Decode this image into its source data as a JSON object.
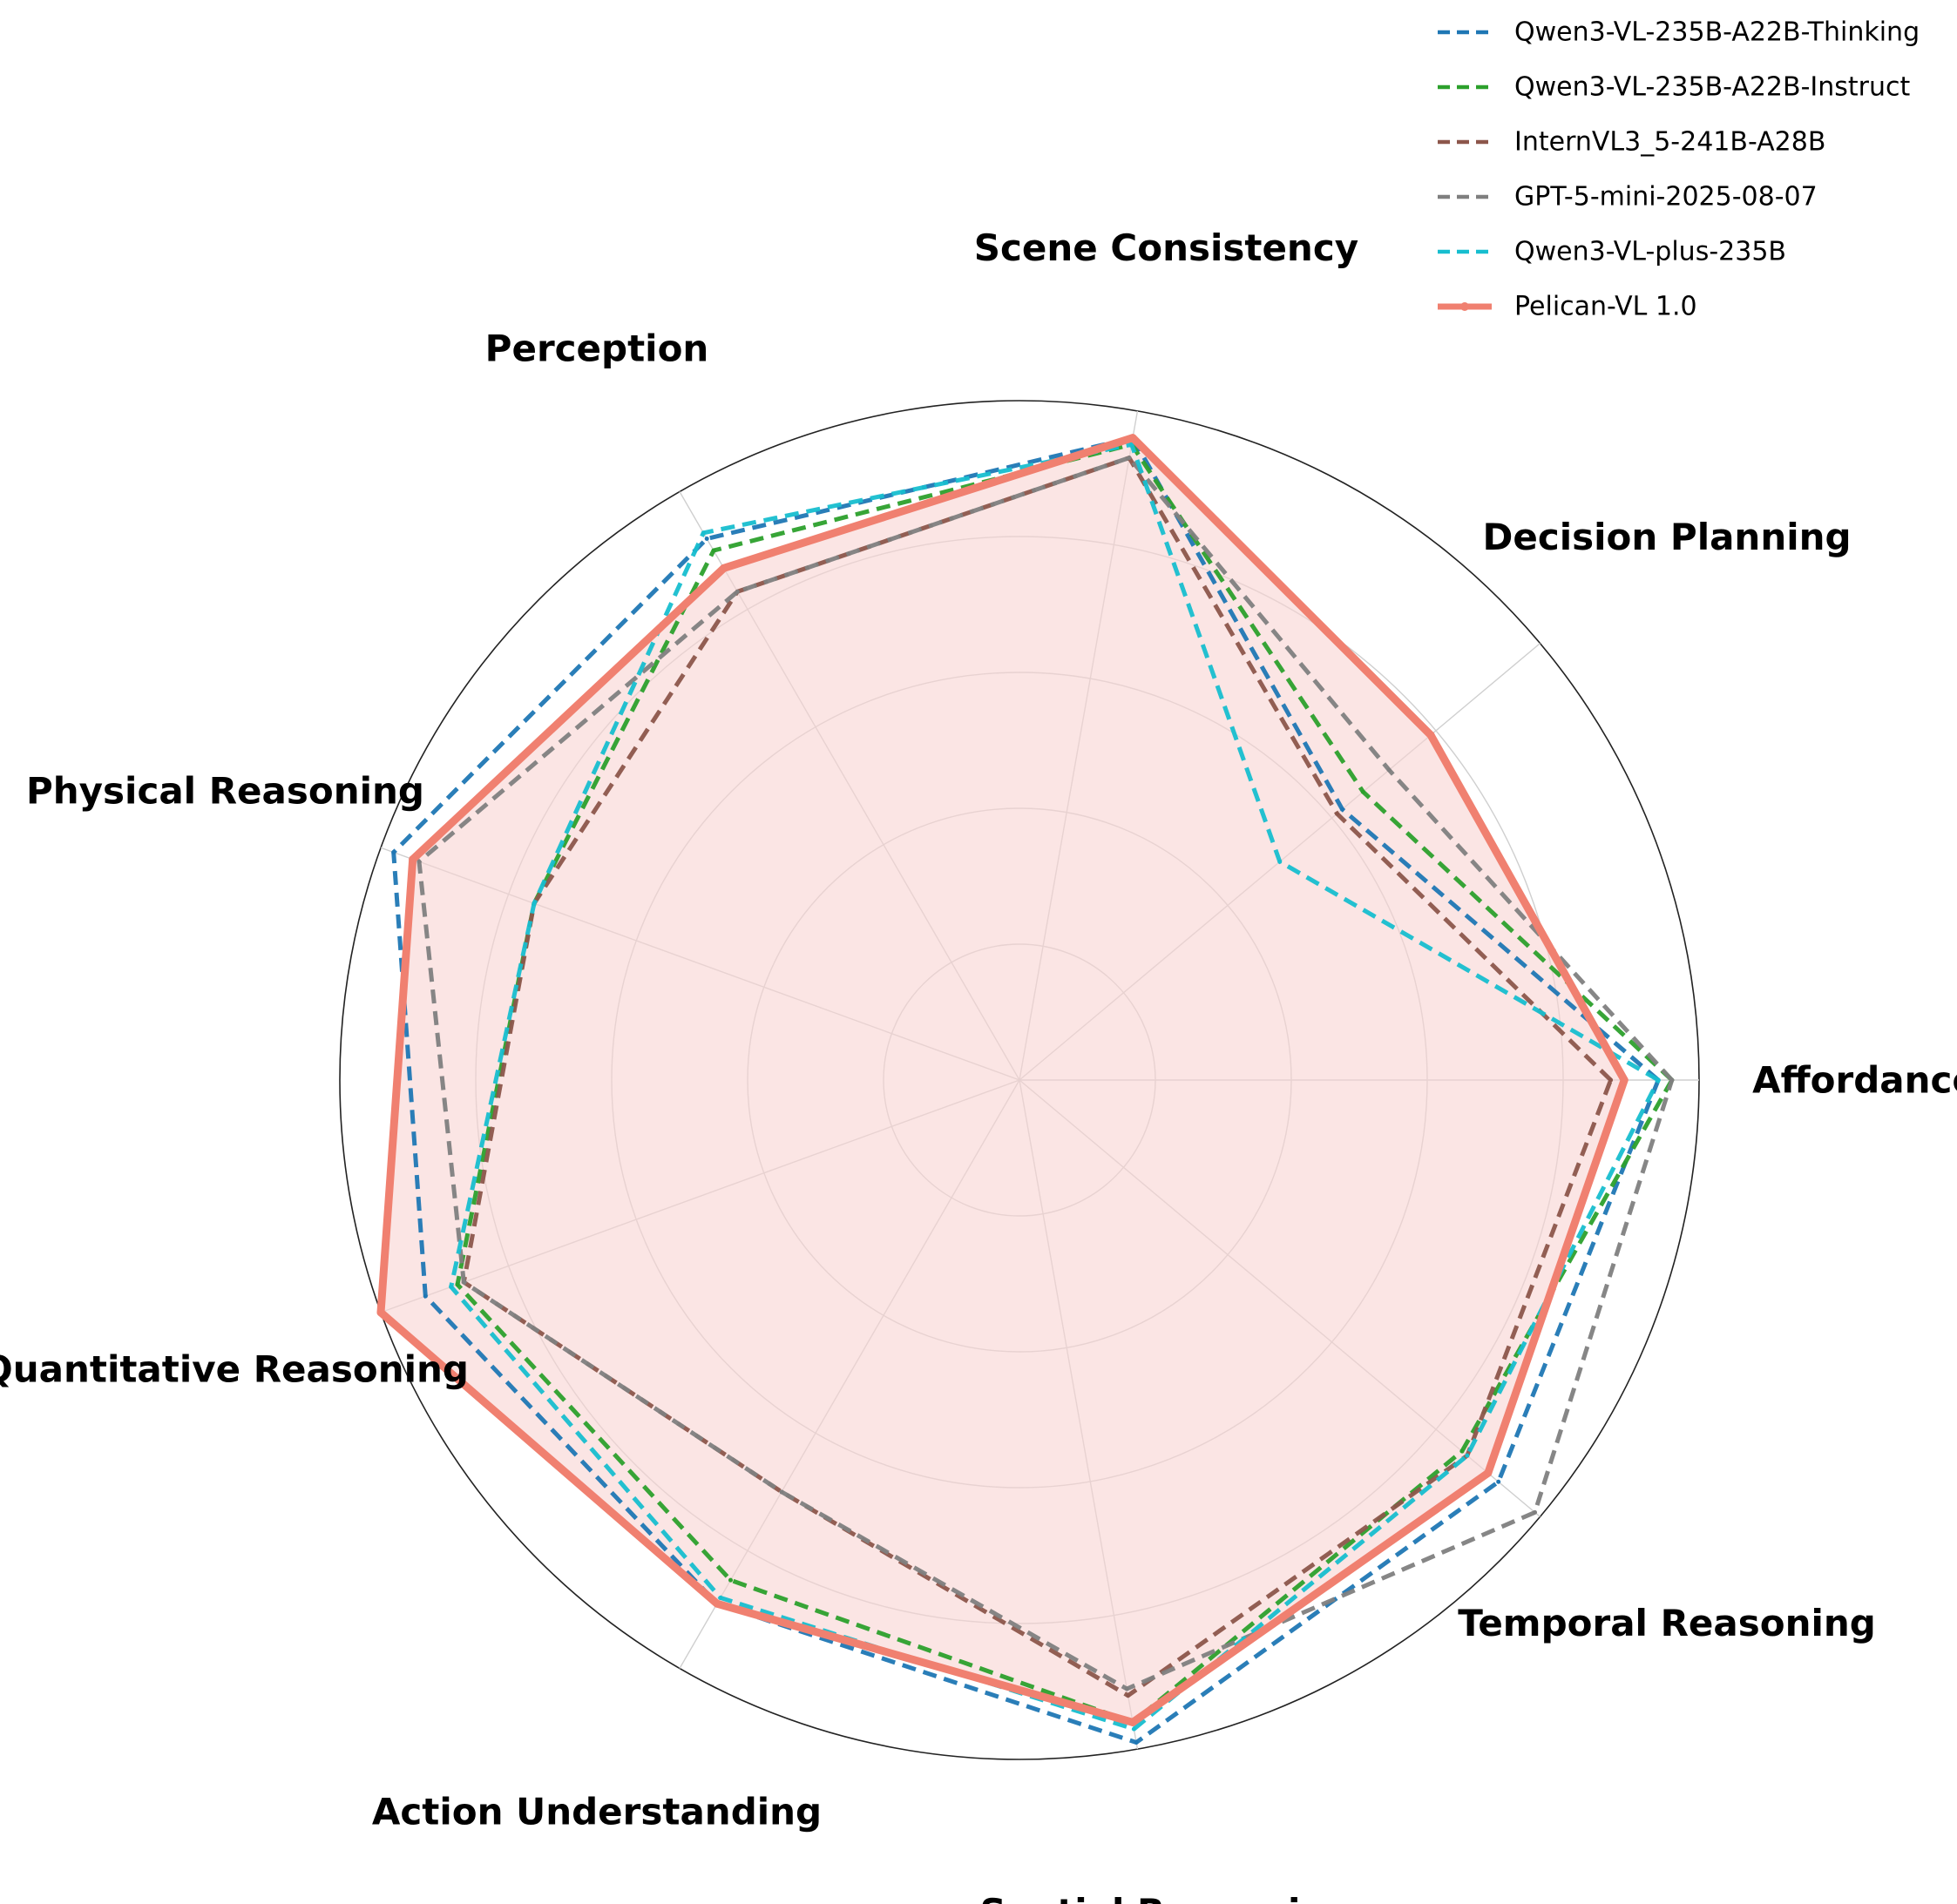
{
  "chart_data": {
    "type": "radar",
    "axes": [
      "Affordance",
      "Decision Planning",
      "Scene Consistency",
      "Perception",
      "Physical Reasoning",
      "Quantitative Reasoning",
      "Action Understanding",
      "Spatial Reasoning",
      "Temporal Reasoning"
    ],
    "rmax": 1.0,
    "grid_levels": [
      0.2,
      0.4,
      0.6,
      0.8,
      1.0
    ],
    "grid": true,
    "legend_position": "top-right",
    "series": [
      {
        "name": "Qwen3-VL-235B-A22B-Thinking",
        "color": "#1f77b4",
        "style": "dashed",
        "values": [
          0.94,
          0.62,
          0.96,
          0.92,
          0.98,
          0.93,
          0.89,
          0.99,
          0.92
        ]
      },
      {
        "name": "Qwen3-VL-235B-A22B-Instruct",
        "color": "#2ca02c",
        "style": "dashed",
        "values": [
          0.96,
          0.66,
          0.95,
          0.9,
          0.76,
          0.88,
          0.85,
          0.96,
          0.85
        ]
      },
      {
        "name": "InternVL3_5-241B-A28B",
        "color": "#8c564b",
        "style": "dashed",
        "values": [
          0.87,
          0.61,
          0.93,
          0.83,
          0.76,
          0.87,
          0.7,
          0.92,
          0.86
        ]
      },
      {
        "name": "GPT-5-mini-2025-08-07",
        "color": "#7f7f7f",
        "style": "dashed",
        "values": [
          0.96,
          0.71,
          0.93,
          0.83,
          0.94,
          0.87,
          0.7,
          0.91,
          0.99
        ]
      },
      {
        "name": "Qwen3-VL-plus-235B",
        "color": "#17becf",
        "style": "dashed",
        "values": [
          0.94,
          0.5,
          0.95,
          0.93,
          0.76,
          0.89,
          0.88,
          0.97,
          0.86
        ]
      },
      {
        "name": "Pelican-VL 1.0",
        "color": "#f08070",
        "style": "solid",
        "fill": "#f9d4d2",
        "values": [
          0.89,
          0.79,
          0.96,
          0.87,
          0.95,
          1.0,
          0.89,
          0.96,
          0.9
        ]
      }
    ]
  }
}
